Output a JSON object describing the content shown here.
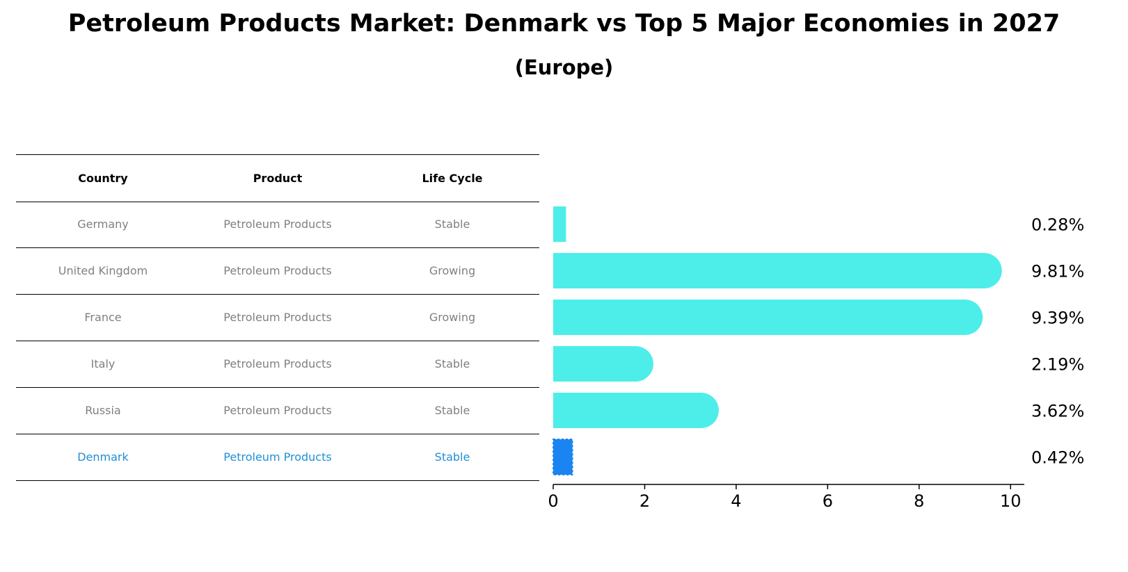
{
  "chart_data": {
    "type": "bar",
    "orientation": "horizontal",
    "title": "Petroleum Products Market: Denmark vs Top 5 Major Economies in 2027",
    "subtitle": "(Europe)",
    "table": {
      "columns": [
        "Country",
        "Product",
        "Life Cycle"
      ],
      "rows": [
        [
          "Germany",
          "Petroleum Products",
          "Stable"
        ],
        [
          "United Kingdom",
          "Petroleum Products",
          "Growing"
        ],
        [
          "France",
          "Petroleum Products",
          "Growing"
        ],
        [
          "Italy",
          "Petroleum Products",
          "Stable"
        ],
        [
          "Russia",
          "Petroleum Products",
          "Stable"
        ],
        [
          "Denmark",
          "Petroleum Products",
          "Stable"
        ]
      ],
      "highlight_row": 5
    },
    "categories": [
      "Germany",
      "United Kingdom",
      "France",
      "Italy",
      "Russia",
      "Denmark"
    ],
    "values": [
      0.28,
      9.81,
      9.39,
      2.19,
      3.62,
      0.42
    ],
    "value_labels": [
      "0.28%",
      "9.81%",
      "9.39%",
      "2.19%",
      "3.62%",
      "0.42%"
    ],
    "xlim": [
      0,
      10.3
    ],
    "xticks": [
      "0",
      "2",
      "4",
      "6",
      "8",
      "10"
    ],
    "grid": false,
    "colors": {
      "bar": "#4deeea",
      "highlight": "#1a85f0",
      "text": "#000000",
      "muted": "#808080",
      "highlight_text": "#1f8fd6"
    }
  }
}
